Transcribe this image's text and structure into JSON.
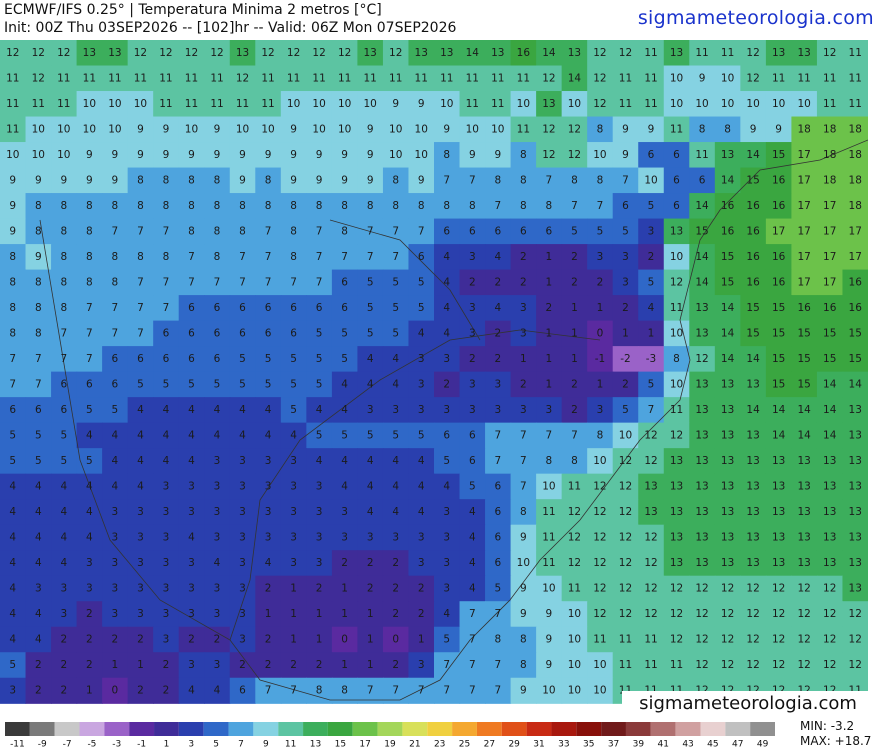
{
  "header": {
    "title": "ECMWF/IFS 0.25° | Temperatura Minima 2 metros [°C]",
    "subtitle": "Init: 00Z Thu 03SEP2026 -- [102]hr -- Valid: 06Z Mon 07SEP2026",
    "site": "sigmameteorologia.com"
  },
  "watermark": "sigmameteorologia.com",
  "map": {
    "grid": [
      [
        12,
        12,
        12,
        13,
        13,
        12,
        12,
        12,
        12,
        13,
        12,
        12,
        12,
        12,
        13,
        12,
        13,
        13,
        14,
        13,
        16,
        14,
        13,
        12,
        12,
        11,
        13,
        11,
        11,
        12,
        13,
        13,
        12,
        11
      ],
      [
        11,
        12,
        11,
        11,
        11,
        11,
        11,
        11,
        11,
        12,
        11,
        11,
        11,
        11,
        11,
        11,
        11,
        11,
        11,
        11,
        11,
        12,
        14,
        12,
        11,
        11,
        10,
        9,
        10,
        12,
        11,
        11,
        11,
        11
      ],
      [
        11,
        11,
        11,
        10,
        10,
        10,
        11,
        11,
        11,
        11,
        11,
        10,
        10,
        10,
        10,
        9,
        9,
        10,
        11,
        11,
        10,
        13,
        10,
        12,
        11,
        11,
        10,
        10,
        10,
        10,
        10,
        10,
        11,
        11
      ],
      [
        11,
        10,
        10,
        10,
        10,
        9,
        9,
        10,
        9,
        10,
        10,
        9,
        10,
        10,
        9,
        10,
        10,
        9,
        10,
        10,
        11,
        12,
        12,
        8,
        9,
        9,
        11,
        8,
        8,
        9,
        9,
        18,
        18,
        18
      ],
      [
        10,
        10,
        10,
        9,
        9,
        9,
        9,
        9,
        9,
        9,
        9,
        9,
        9,
        9,
        9,
        10,
        10,
        8,
        9,
        9,
        8,
        12,
        12,
        10,
        9,
        6,
        6,
        11,
        13,
        14,
        15,
        17,
        18,
        18
      ],
      [
        9,
        9,
        9,
        9,
        9,
        8,
        8,
        8,
        8,
        9,
        8,
        9,
        9,
        9,
        9,
        8,
        9,
        7,
        7,
        8,
        8,
        7,
        8,
        8,
        7,
        10,
        6,
        6,
        14,
        15,
        16,
        17,
        18,
        18
      ],
      [
        9,
        8,
        8,
        8,
        8,
        8,
        8,
        8,
        8,
        8,
        8,
        8,
        8,
        8,
        8,
        8,
        8,
        8,
        8,
        7,
        8,
        8,
        7,
        7,
        6,
        5,
        6,
        14,
        16,
        16,
        16,
        17,
        17,
        18
      ],
      [
        9,
        8,
        8,
        8,
        7,
        7,
        7,
        8,
        8,
        8,
        7,
        8,
        7,
        8,
        7,
        7,
        7,
        6,
        6,
        6,
        6,
        6,
        5,
        5,
        5,
        3,
        13,
        15,
        16,
        16,
        17,
        17,
        17,
        17
      ],
      [
        8,
        9,
        8,
        8,
        8,
        8,
        8,
        7,
        8,
        7,
        7,
        8,
        7,
        7,
        7,
        7,
        6,
        4,
        3,
        4,
        2,
        1,
        2,
        3,
        3,
        2,
        10,
        14,
        15,
        16,
        16,
        17,
        17,
        17
      ],
      [
        8,
        8,
        8,
        8,
        8,
        7,
        7,
        7,
        7,
        7,
        7,
        7,
        7,
        6,
        5,
        5,
        5,
        4,
        2,
        2,
        2,
        1,
        2,
        2,
        3,
        5,
        12,
        14,
        15,
        16,
        16,
        17,
        17,
        16
      ],
      [
        8,
        8,
        8,
        7,
        7,
        7,
        7,
        6,
        6,
        6,
        6,
        6,
        6,
        6,
        5,
        5,
        5,
        4,
        3,
        4,
        3,
        2,
        1,
        1,
        2,
        4,
        11,
        13,
        14,
        15,
        15,
        16,
        16,
        16
      ],
      [
        8,
        8,
        7,
        7,
        7,
        7,
        6,
        6,
        6,
        6,
        6,
        6,
        5,
        5,
        5,
        5,
        4,
        4,
        3,
        2,
        3,
        1,
        1,
        0,
        1,
        1,
        10,
        13,
        14,
        15,
        15,
        15,
        15,
        15
      ],
      [
        7,
        7,
        7,
        7,
        6,
        6,
        6,
        6,
        6,
        5,
        5,
        5,
        5,
        5,
        4,
        4,
        3,
        3,
        2,
        2,
        1,
        1,
        1,
        -1,
        -2,
        -3,
        8,
        12,
        14,
        14,
        15,
        15,
        15,
        15
      ],
      [
        7,
        7,
        6,
        6,
        6,
        5,
        5,
        5,
        5,
        5,
        5,
        5,
        5,
        4,
        4,
        4,
        3,
        2,
        3,
        3,
        2,
        1,
        2,
        1,
        2,
        5,
        10,
        13,
        13,
        13,
        15,
        15,
        14,
        14
      ],
      [
        6,
        6,
        6,
        5,
        5,
        4,
        4,
        4,
        4,
        4,
        4,
        5,
        4,
        4,
        3,
        3,
        3,
        3,
        3,
        3,
        3,
        3,
        2,
        3,
        5,
        7,
        11,
        13,
        13,
        14,
        14,
        14,
        14,
        13
      ],
      [
        5,
        5,
        5,
        4,
        4,
        4,
        4,
        4,
        4,
        4,
        4,
        4,
        5,
        5,
        5,
        5,
        5,
        6,
        6,
        7,
        7,
        7,
        7,
        8,
        10,
        12,
        12,
        13,
        13,
        13,
        14,
        14,
        14,
        13
      ],
      [
        5,
        5,
        5,
        5,
        4,
        4,
        4,
        4,
        3,
        3,
        3,
        3,
        4,
        4,
        4,
        4,
        4,
        5,
        6,
        7,
        7,
        8,
        8,
        10,
        12,
        12,
        13,
        13,
        13,
        13,
        13,
        13,
        13,
        13
      ],
      [
        4,
        4,
        4,
        4,
        4,
        4,
        3,
        3,
        3,
        3,
        3,
        3,
        3,
        4,
        4,
        4,
        4,
        4,
        5,
        6,
        7,
        10,
        11,
        12,
        12,
        13,
        13,
        13,
        13,
        13,
        13,
        13,
        13,
        13
      ],
      [
        4,
        4,
        4,
        4,
        3,
        3,
        3,
        3,
        3,
        3,
        3,
        3,
        3,
        3,
        4,
        4,
        4,
        3,
        4,
        6,
        8,
        11,
        12,
        12,
        12,
        13,
        13,
        13,
        13,
        13,
        13,
        13,
        13,
        13
      ],
      [
        4,
        4,
        4,
        4,
        3,
        3,
        3,
        4,
        3,
        3,
        3,
        3,
        3,
        3,
        3,
        3,
        3,
        3,
        4,
        6,
        9,
        11,
        12,
        12,
        12,
        12,
        13,
        13,
        13,
        13,
        13,
        13,
        13,
        13
      ],
      [
        4,
        4,
        4,
        3,
        3,
        3,
        3,
        3,
        4,
        3,
        4,
        3,
        3,
        2,
        2,
        2,
        3,
        3,
        4,
        6,
        10,
        11,
        12,
        12,
        12,
        12,
        13,
        13,
        13,
        13,
        13,
        13,
        13,
        13
      ],
      [
        4,
        3,
        3,
        3,
        3,
        3,
        3,
        3,
        3,
        3,
        2,
        1,
        2,
        1,
        2,
        2,
        2,
        3,
        4,
        5,
        9,
        10,
        11,
        12,
        12,
        12,
        12,
        12,
        12,
        12,
        12,
        12,
        12,
        13
      ],
      [
        4,
        4,
        3,
        2,
        3,
        3,
        3,
        3,
        3,
        3,
        1,
        1,
        1,
        1,
        1,
        2,
        2,
        4,
        7,
        7,
        9,
        9,
        10,
        12,
        12,
        12,
        12,
        12,
        12,
        12,
        12,
        12,
        12,
        12
      ],
      [
        4,
        4,
        2,
        2,
        2,
        2,
        3,
        2,
        2,
        3,
        2,
        1,
        1,
        0,
        1,
        0,
        1,
        5,
        7,
        8,
        8,
        9,
        10,
        11,
        11,
        11,
        12,
        12,
        12,
        12,
        12,
        12,
        12,
        12
      ],
      [
        5,
        2,
        2,
        2,
        1,
        1,
        2,
        3,
        3,
        2,
        2,
        2,
        2,
        1,
        1,
        2,
        3,
        7,
        7,
        7,
        8,
        9,
        10,
        10,
        11,
        11,
        11,
        12,
        12,
        12,
        12,
        12,
        12,
        12
      ],
      [
        3,
        2,
        2,
        1,
        0,
        2,
        2,
        4,
        4,
        6,
        7,
        7,
        8,
        8,
        7,
        7,
        7,
        7,
        7,
        7,
        9,
        10,
        10,
        10,
        11,
        11,
        11,
        12,
        12,
        12,
        12,
        12,
        12,
        11
      ]
    ]
  },
  "colorbar": {
    "ticks": [
      -11,
      -9,
      -7,
      -5,
      -3,
      -1,
      1,
      3,
      5,
      7,
      9,
      11,
      13,
      15,
      17,
      19,
      21,
      23,
      25,
      27,
      29,
      31,
      33,
      35,
      37,
      39,
      41,
      43,
      45,
      47,
      49
    ],
    "colors": [
      "#3a3a3a",
      "#7a7a7a",
      "#c8c8c8",
      "#c9a6e0",
      "#9a62c8",
      "#5a2aa0",
      "#3f2c98",
      "#2a3fae",
      "#2f68c8",
      "#4ea4de",
      "#85d2e2",
      "#5cc4a2",
      "#3cae5c",
      "#3aa640",
      "#6cc24a",
      "#a4d65a",
      "#d8e05a",
      "#f0d040",
      "#f4a830",
      "#ef7a22",
      "#e05018",
      "#c82a14",
      "#a8180e",
      "#88100a",
      "#701a1a",
      "#8a3a3a",
      "#b07070",
      "#d0a0a0",
      "#e8d0d0",
      "#c0c0c0",
      "#909090"
    ]
  },
  "stats": {
    "min": "MIN: -3.2",
    "max": "MAX: +18.7"
  }
}
